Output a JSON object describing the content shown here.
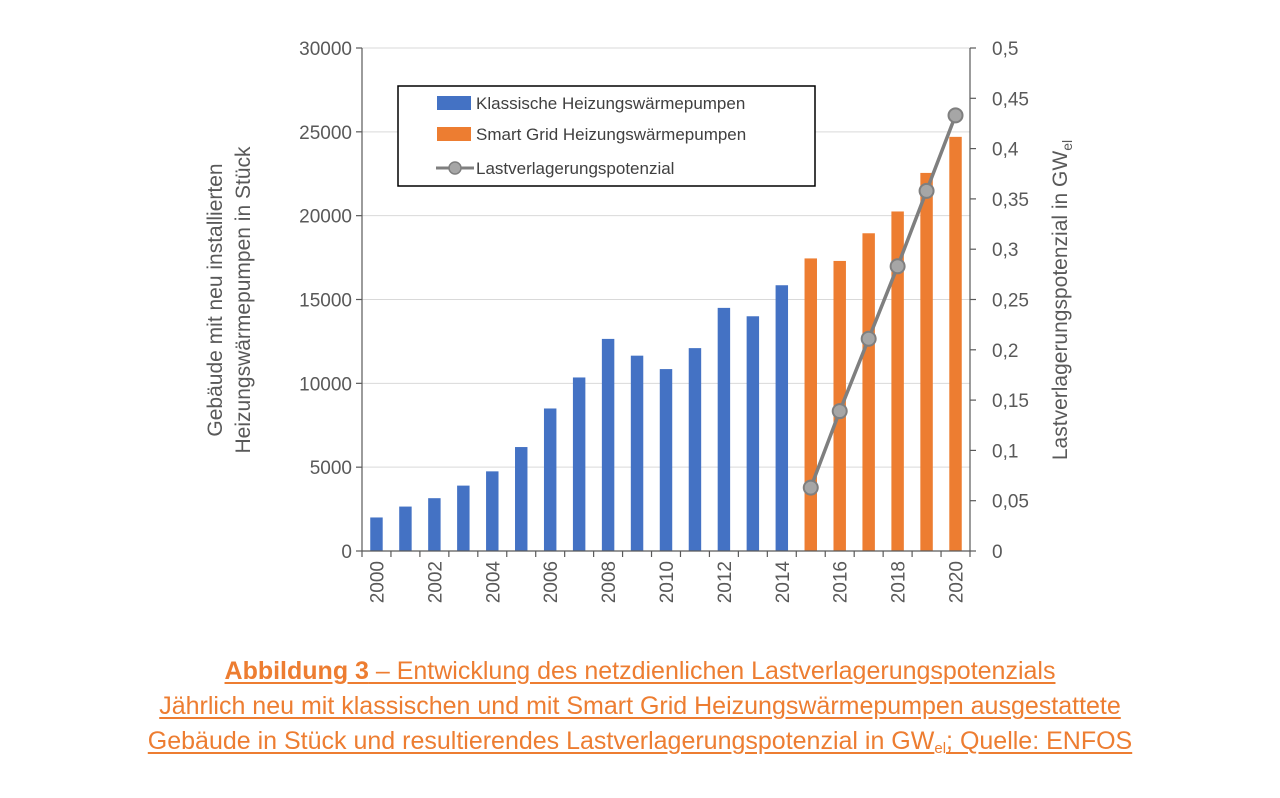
{
  "chart_data": {
    "type": "bar",
    "x": [
      2000,
      2001,
      2002,
      2003,
      2004,
      2005,
      2006,
      2007,
      2008,
      2009,
      2010,
      2011,
      2012,
      2013,
      2014,
      2015,
      2016,
      2017,
      2018,
      2019,
      2020
    ],
    "x_tick_labels": [
      "2000",
      "2002",
      "2004",
      "2006",
      "2008",
      "2010",
      "2012",
      "2014",
      "2016",
      "2018",
      "2020"
    ],
    "series": [
      {
        "name": "Klassische Heizungswärmepumpen",
        "type": "bar",
        "axis": "left",
        "color": "#4472C4",
        "x": [
          2000,
          2001,
          2002,
          2003,
          2004,
          2005,
          2006,
          2007,
          2008,
          2009,
          2010,
          2011,
          2012,
          2013,
          2014
        ],
        "values": [
          2000,
          2650,
          3150,
          3900,
          4750,
          6200,
          8500,
          10350,
          12650,
          11650,
          10850,
          12100,
          14500,
          14000,
          15850
        ]
      },
      {
        "name": "Smart Grid Heizungswärmepumpen",
        "type": "bar",
        "axis": "left",
        "color": "#ED7D31",
        "x": [
          2015,
          2016,
          2017,
          2018,
          2019,
          2020
        ],
        "values": [
          17450,
          17300,
          18950,
          20250,
          22550,
          24700
        ]
      },
      {
        "name": "Lastverlagerungspotenzial",
        "type": "line",
        "axis": "right",
        "color": "#7F7F7F",
        "x": [
          2015,
          2016,
          2017,
          2018,
          2019,
          2020
        ],
        "values": [
          0.063,
          0.139,
          0.211,
          0.283,
          0.358,
          0.433
        ]
      }
    ],
    "y_left": {
      "label_line1": "Gebäude mit neu installierten",
      "label_line2": "Heizungswärmepumpen in Stück",
      "range": [
        0,
        30000
      ],
      "ticks": [
        0,
        5000,
        10000,
        15000,
        20000,
        25000,
        30000
      ],
      "tick_labels": [
        "0",
        "5000",
        "10000",
        "15000",
        "20000",
        "25000",
        "30000"
      ]
    },
    "y_right": {
      "label": "Lastverlagerungspotenzial in GW",
      "label_sub": "el",
      "range": [
        0,
        0.5
      ],
      "ticks": [
        0,
        0.05,
        0.1,
        0.15,
        0.2,
        0.25,
        0.3,
        0.35,
        0.4,
        0.45,
        0.5
      ],
      "tick_labels": [
        "0",
        "0,05",
        "0,1",
        "0,15",
        "0,2",
        "0,25",
        "0,3",
        "0,35",
        "0,4",
        "0,45",
        "0,5"
      ]
    },
    "grid": "horizontal",
    "legend_position": "top-left"
  },
  "caption": {
    "label": "Abbildung 3",
    "title_rest": " – Entwicklung des netzdienlichen Lastverlagerungspotenzials",
    "line2": "Jährlich neu mit klassischen und mit Smart Grid Heizungswärmepumpen ausgestattete",
    "line3_part1": "Gebäude in Stück und resultierendes Lastverlagerungspotenzial in GW",
    "line3_sub": "el",
    "line3_part2": "; Quelle: ENFOS",
    "color": "#ED7D31"
  }
}
